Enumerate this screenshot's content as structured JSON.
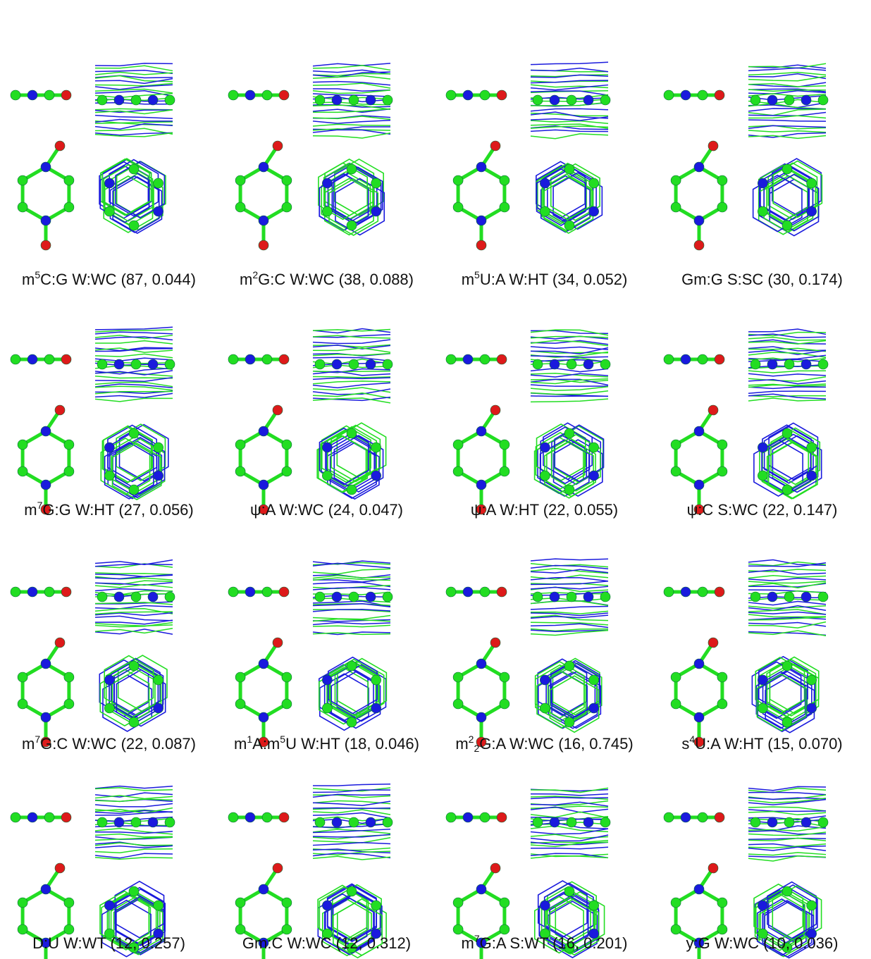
{
  "panels": [
    {
      "caption": [
        {
          "text": "m"
        },
        {
          "text": "5",
          "sup": true
        },
        {
          "text": "C:G W:WC (87, 0.044)"
        }
      ]
    },
    {
      "caption": [
        {
          "text": "m"
        },
        {
          "text": "2",
          "sup": true
        },
        {
          "text": "G:C W:WC (38, 0.088)"
        }
      ]
    },
    {
      "caption": [
        {
          "text": "m"
        },
        {
          "text": "5",
          "sup": true
        },
        {
          "text": "U:A W:HT (34, 0.052)"
        }
      ]
    },
    {
      "caption": [
        {
          "text": "Gm:G S:SC (30, 0.174)"
        }
      ]
    },
    {
      "caption": [
        {
          "text": "m"
        },
        {
          "text": "7",
          "sup": true
        },
        {
          "text": "G:G W:HT (27, 0.056)"
        }
      ]
    },
    {
      "caption": [
        {
          "text": "ψ:A W:WC (24, 0.047)"
        }
      ]
    },
    {
      "caption": [
        {
          "text": "ψ:A W:HT (22, 0.055)"
        }
      ]
    },
    {
      "caption": [
        {
          "text": "ψ:C S:WC (22, 0.147)"
        }
      ]
    },
    {
      "caption": [
        {
          "text": "m"
        },
        {
          "text": "7",
          "sup": true
        },
        {
          "text": "G:C W:WC (22, 0.087)"
        }
      ]
    },
    {
      "caption": [
        {
          "text": "m"
        },
        {
          "text": "1",
          "sup": true
        },
        {
          "text": "A:m"
        },
        {
          "text": "5",
          "sup": true
        },
        {
          "text": "U W:HT (18, 0.046)"
        }
      ]
    },
    {
      "caption": [
        {
          "text": "m"
        },
        {
          "text": "2",
          "sup": true
        },
        {
          "text": "2",
          "sub": true
        },
        {
          "text": "G:A W:WC (16, 0.745)"
        }
      ]
    },
    {
      "caption": [
        {
          "text": "s"
        },
        {
          "text": "4",
          "sup": true
        },
        {
          "text": "U:A W:HT (15, 0.070)"
        }
      ]
    },
    {
      "caption": [
        {
          "text": "D:U W:WT (12, 0.257)"
        }
      ]
    },
    {
      "caption": [
        {
          "text": "Gm:C W:WC (12, 0.312)"
        }
      ]
    },
    {
      "caption": [
        {
          "text": "m"
        },
        {
          "text": "7",
          "sup": true
        },
        {
          "text": "G:A S:WT (16, 0.201)"
        }
      ]
    },
    {
      "caption": [
        {
          "text": "y:G W:WC (10, 0.036)"
        }
      ]
    }
  ]
}
